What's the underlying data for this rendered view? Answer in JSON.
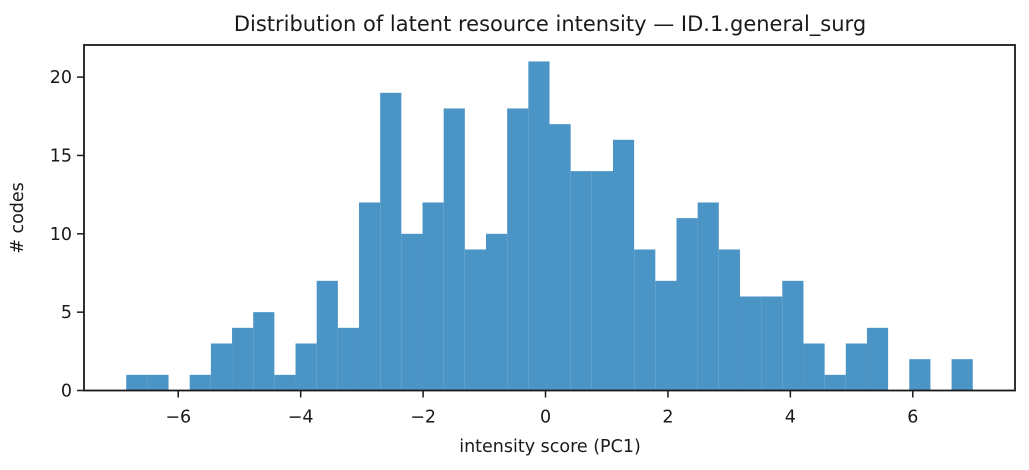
{
  "chart_data": {
    "type": "bar",
    "subtype": "histogram",
    "title": "Distribution of latent resource intensity — ID.1.general_surg",
    "xlabel": "intensity score (PC1)",
    "ylabel": "# codes",
    "bin_start": -6.85,
    "bin_width": 0.34575,
    "counts": [
      1,
      1,
      0,
      1,
      3,
      4,
      5,
      1,
      3,
      7,
      4,
      12,
      19,
      10,
      12,
      18,
      9,
      10,
      18,
      21,
      17,
      14,
      14,
      16,
      9,
      7,
      11,
      12,
      9,
      6,
      6,
      7,
      3,
      1,
      3,
      4,
      0,
      2,
      0,
      2
    ],
    "x_ticks": [
      -6,
      -4,
      -2,
      0,
      2,
      4,
      6
    ],
    "x_tick_labels": [
      "−6",
      "−4",
      "−2",
      "0",
      "2",
      "4",
      "6"
    ],
    "y_ticks": [
      0,
      5,
      10,
      15,
      20
    ],
    "y_tick_labels": [
      "0",
      "5",
      "10",
      "15",
      "20"
    ],
    "xlim": [
      -7.54,
      7.67
    ],
    "ylim": [
      0,
      22.05
    ],
    "grid": false,
    "legend_position": "none",
    "bar_color": "#4A94C6",
    "axis_color": "#1a1a1a",
    "background_color": "#ffffff"
  }
}
